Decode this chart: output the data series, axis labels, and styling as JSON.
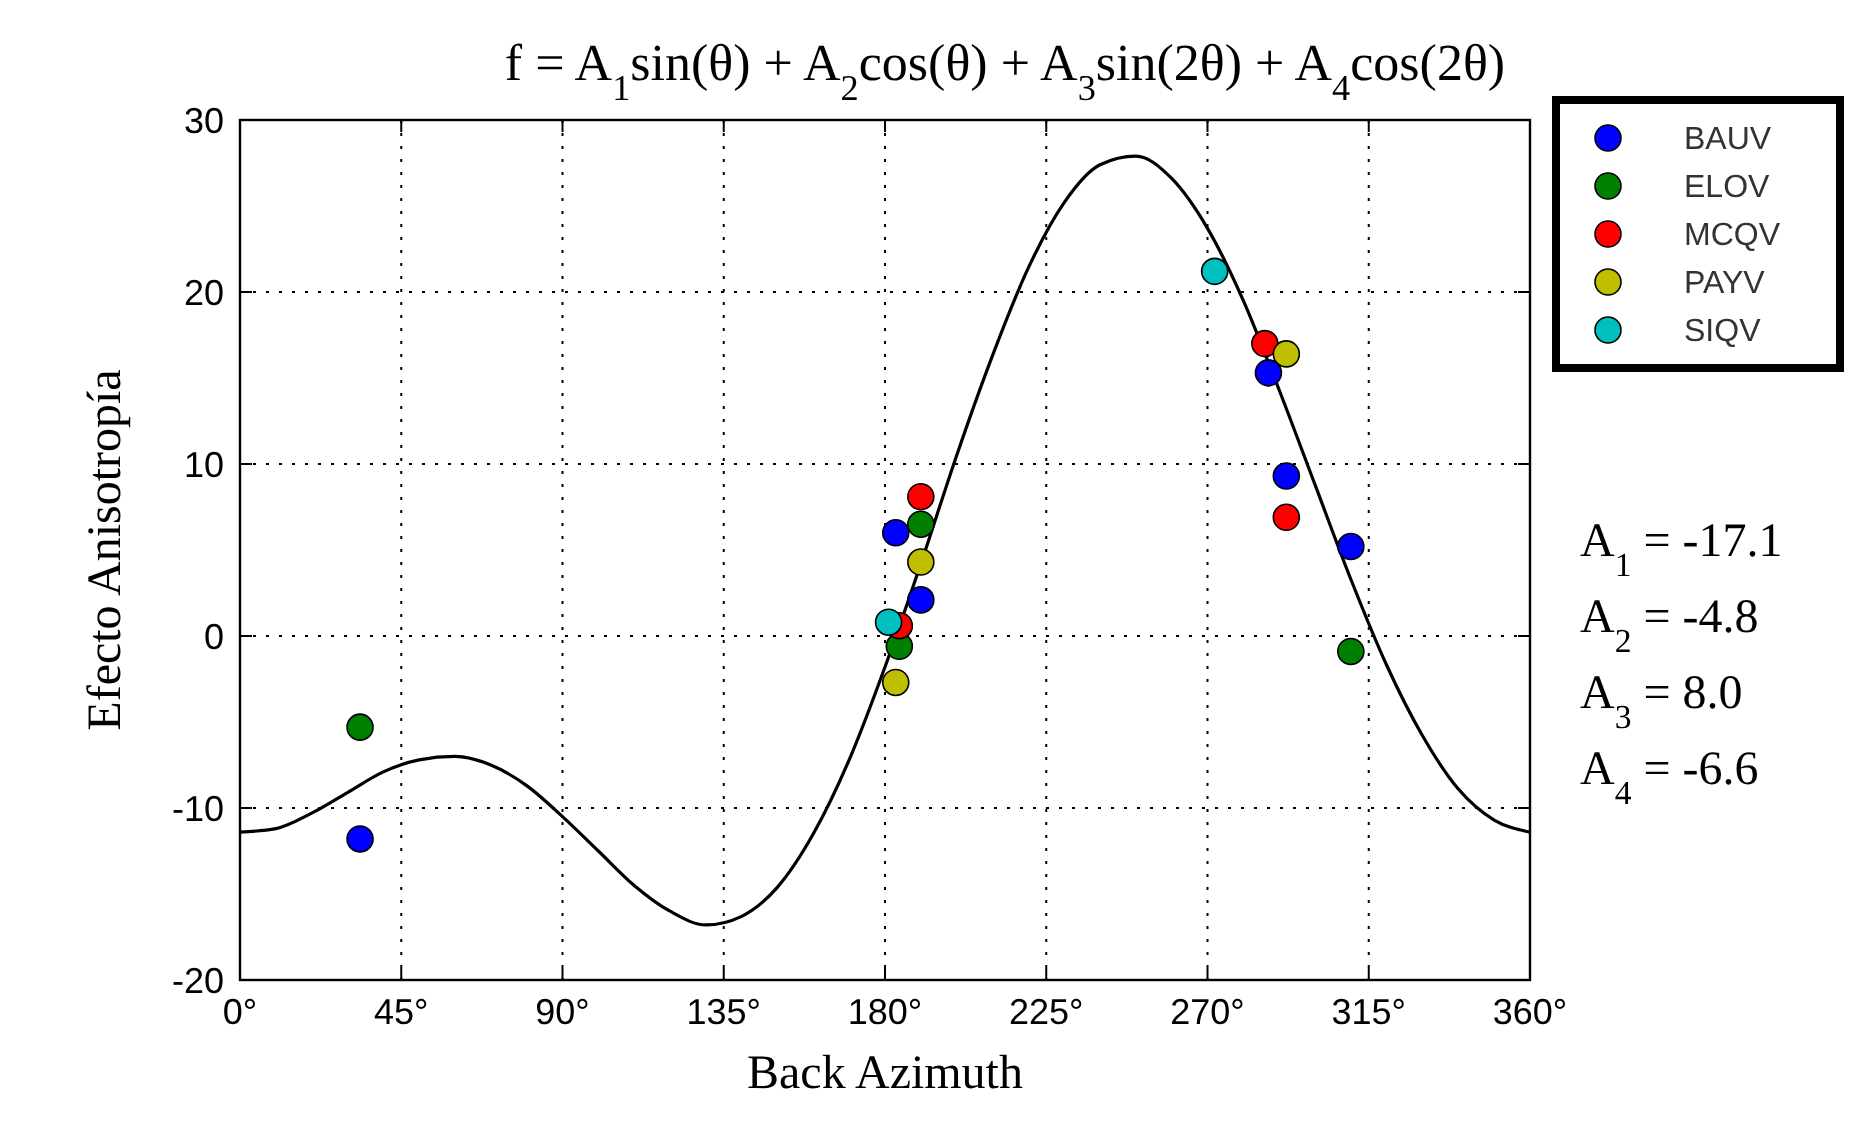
{
  "chart_data": {
    "type": "scatter",
    "title": "f = A$_{1}$sin(θ) + A$_{2}$cos(θ) + A$_{3}$sin(2θ) + A$_{4}$cos(2θ)",
    "xlabel": "Back Azimuth",
    "ylabel": "Efecto Anisotropía",
    "xlim": [
      0,
      360
    ],
    "xticks": [
      {
        "value": 0,
        "label": "0°"
      },
      {
        "value": 45,
        "label": "45°"
      },
      {
        "value": 90,
        "label": "90°"
      },
      {
        "value": 135,
        "label": "135°"
      },
      {
        "value": 180,
        "label": "180°"
      },
      {
        "value": 225,
        "label": "225°"
      },
      {
        "value": 270,
        "label": "270°"
      },
      {
        "value": 315,
        "label": "315°"
      },
      {
        "value": 360,
        "label": "360°"
      }
    ],
    "ylim": [
      -20,
      30
    ],
    "yticks": [
      -20,
      -10,
      0,
      10,
      20,
      30
    ],
    "grid": true,
    "legend": "top right",
    "marker": "circle",
    "annotations": [
      "A$_{1}$ = -17.1",
      "A$_{2}$ = -4.8",
      "A$_{3}$ = 8.0",
      "A$_{4}$ = -6.6"
    ],
    "series": [
      {
        "type": "line",
        "color": "#000000",
        "line_style": "solid",
        "marker": "none",
        "x": [
          0,
          10,
          20,
          30,
          40,
          50,
          60,
          70,
          80,
          90,
          100,
          110,
          120,
          130,
          140,
          150,
          160,
          170,
          180,
          190,
          200,
          210,
          220,
          230,
          240,
          250,
          260,
          270,
          280,
          290,
          300,
          310,
          320,
          330,
          340,
          350,
          360
        ],
        "values": [
          -11.4,
          -11.2,
          -10.3,
          -9.1,
          -7.9,
          -7.2,
          -7.0,
          -7.5,
          -8.7,
          -10.5,
          -12.5,
          -14.5,
          -16.0,
          -16.8,
          -16.3,
          -14.6,
          -11.5,
          -7.2,
          -1.8,
          4.2,
          10.5,
          16.3,
          21.4,
          25.2,
          27.4,
          27.9,
          26.6,
          23.7,
          19.5,
          14.3,
          8.8,
          3.3,
          -1.7,
          -5.8,
          -8.9,
          -10.7,
          -11.4
        ]
      },
      {
        "name": "BAUV",
        "color": "#0000ff",
        "x": [
          33.5,
          183,
          190,
          287,
          292,
          310
        ],
        "values": [
          -11.8,
          6.0,
          2.1,
          15.3,
          9.3,
          5.2
        ]
      },
      {
        "name": "ELOV",
        "color": "#008000",
        "x": [
          33.5,
          190,
          184,
          310
        ],
        "values": [
          -5.3,
          6.5,
          -0.6,
          -0.9
        ]
      },
      {
        "name": "MCQV",
        "color": "#ff0000",
        "x": [
          190,
          184,
          286,
          292
        ],
        "values": [
          8.1,
          0.6,
          17.0,
          6.9
        ]
      },
      {
        "name": "PAYV",
        "color": "#bfbf00",
        "x": [
          190,
          183,
          292
        ],
        "values": [
          4.3,
          -2.7,
          16.4
        ]
      },
      {
        "name": "SIQV",
        "color": "#00bfbf",
        "x": [
          181,
          272
        ],
        "values": [
          0.8,
          21.2
        ]
      }
    ]
  }
}
